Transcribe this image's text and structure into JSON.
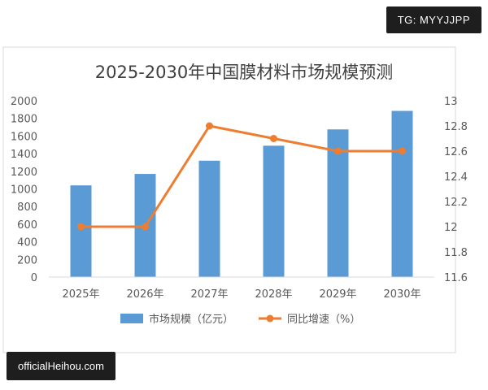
{
  "watermarks": {
    "top_badge": "TG: MYYJJPP",
    "bottom_badge": "officialHeihou.com"
  },
  "colors": {
    "bar": "#5b9bd5",
    "line": "#ed7d31",
    "axis_text": "#595959",
    "grid": "#d9d9d9",
    "title": "#404040"
  },
  "chart_data": {
    "type": "bar",
    "title": "2025-2030年中国膜材料市场规模预测",
    "categories": [
      "2025年",
      "2026年",
      "2027年",
      "2028年",
      "2029年",
      "2030年"
    ],
    "series": [
      {
        "name": "市场规模（亿元）",
        "type": "bar",
        "axis": "left",
        "values": [
          1040,
          1170,
          1320,
          1490,
          1675,
          1885
        ]
      },
      {
        "name": "同比增速（%）",
        "type": "line",
        "axis": "right",
        "values": [
          12.0,
          12.0,
          12.8,
          12.7,
          12.6,
          12.6
        ]
      }
    ],
    "y_left": {
      "ylim": [
        0,
        2000
      ],
      "ticks": [
        "0",
        "200",
        "400",
        "600",
        "800",
        "1000",
        "1200",
        "1400",
        "1600",
        "1800",
        "2000"
      ]
    },
    "y_right": {
      "ylim": [
        11.6,
        13
      ],
      "ticks": [
        "11.6",
        "11.8",
        "12",
        "12.2",
        "12.4",
        "12.6",
        "12.8",
        "13"
      ]
    },
    "grid": false,
    "legend_position": "bottom"
  }
}
